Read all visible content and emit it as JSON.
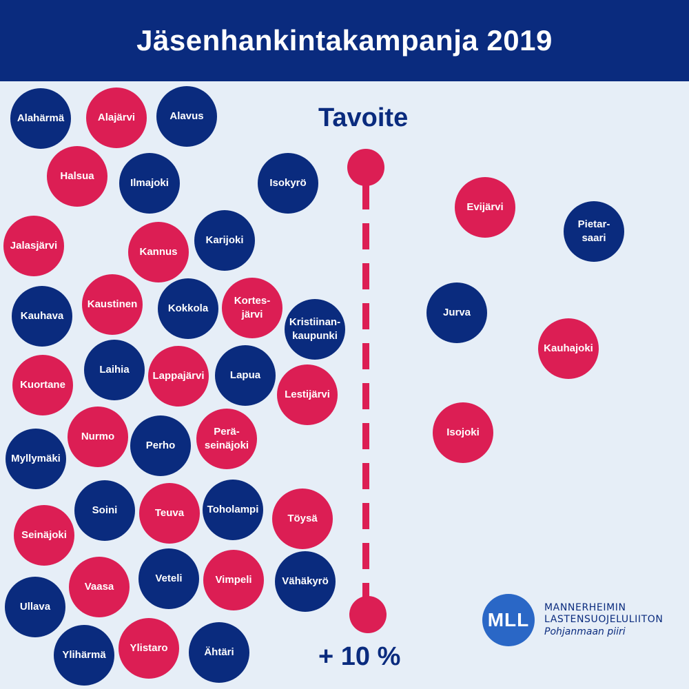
{
  "title": "Jäsenhankintakampanja 2019",
  "goal": {
    "title": "Tavoite",
    "value": "+ 10 %"
  },
  "colors": {
    "navy": "#0a2b7e",
    "pink": "#dc1e54",
    "background": "#e6eef7",
    "logo": "#2a67c6"
  },
  "below_goal": [
    "Alahärmä",
    "Alajärvi",
    "Alavus",
    "Halsua",
    "Ilmajoki",
    "Isokyrö",
    "Jalasjärvi",
    "Kannus",
    "Karijoki",
    "Kauhava",
    "Kaustinen",
    "Kokkola",
    "Kortes-\njärvi",
    "Kristiinan-\nkaupunki",
    "Kuortane",
    "Laihia",
    "Lappajärvi",
    "Lapua",
    "Lestijärvi",
    "Myllymäki",
    "Nurmo",
    "Perho",
    "Perä-\nseinäjoki",
    "Seinäjoki",
    "Soini",
    "Teuva",
    "Toholampi",
    "Töysä",
    "Ullava",
    "Vaasa",
    "Veteli",
    "Vimpeli",
    "Vähäkyrö",
    "Ylihärmä",
    "Ylistaro",
    "Ähtäri"
  ],
  "above_goal": [
    "Evijärvi",
    "Pietar-\nsaari",
    "Jurva",
    "Kauhajoki",
    "Isojoki"
  ],
  "logo": {
    "mark": "MLL",
    "line1": "MANNERHEIMIN",
    "line2": "LASTENSUOJELULIITON",
    "line3": "Pohjanmaan piiri"
  }
}
